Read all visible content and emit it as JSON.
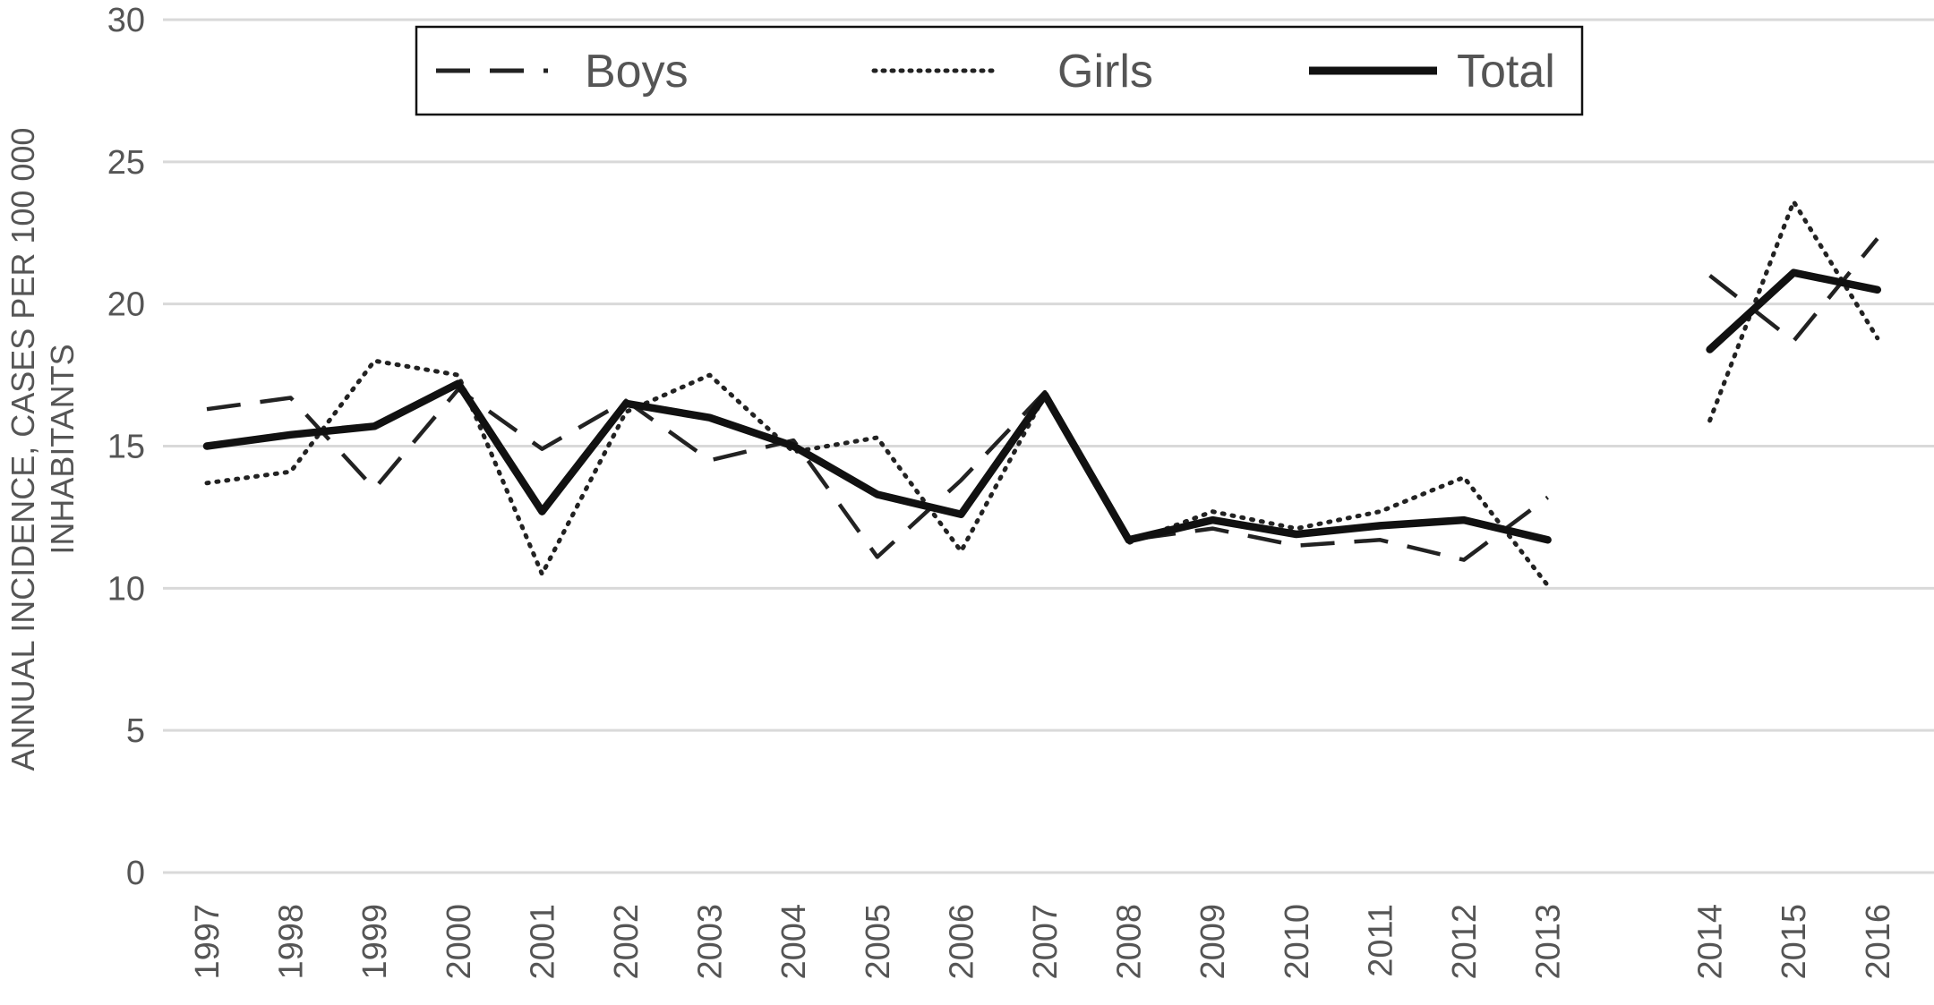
{
  "chart_data": {
    "type": "line",
    "ylabel_lines": [
      "ANNUAL INCIDENCE, CASES PER 100 000",
      "INHABITANTS"
    ],
    "xlabel": "",
    "ylim": [
      0,
      30
    ],
    "yticks": [
      "0",
      "5",
      "10",
      "15",
      "20",
      "25",
      "30"
    ],
    "ytick_values": [
      0,
      5,
      10,
      15,
      20,
      25,
      30
    ],
    "grid": true,
    "legend_position": "top-center",
    "categories": [
      "1997",
      "1998",
      "1999",
      "2000",
      "2001",
      "2002",
      "2003",
      "2004",
      "2005",
      "2006",
      "2007",
      "2008",
      "2009",
      "2010",
      "2011",
      "2012",
      "2013",
      "2014",
      "2015",
      "2016"
    ],
    "gap_after": "2013",
    "series": [
      {
        "name": "Boys",
        "style": "dashed",
        "color": "#222222",
        "values": [
          16.3,
          16.7,
          13.5,
          17.0,
          14.9,
          16.6,
          14.5,
          15.2,
          11.1,
          13.8,
          16.9,
          11.7,
          12.1,
          11.5,
          11.7,
          11.0,
          13.2,
          21.0,
          18.7,
          22.3
        ]
      },
      {
        "name": "Girls",
        "style": "dotted",
        "color": "#222222",
        "values": [
          13.7,
          14.1,
          18.0,
          17.5,
          10.5,
          16.2,
          17.5,
          14.8,
          15.3,
          11.3,
          16.8,
          11.6,
          12.7,
          12.1,
          12.7,
          13.9,
          10.1,
          15.9,
          23.6,
          18.8
        ]
      },
      {
        "name": "Total",
        "style": "solid",
        "color": "#111111",
        "values": [
          15.0,
          15.4,
          15.7,
          17.2,
          12.7,
          16.5,
          16.0,
          15.0,
          13.3,
          12.6,
          16.8,
          11.7,
          12.4,
          11.9,
          12.2,
          12.4,
          11.7,
          18.4,
          21.1,
          20.5
        ]
      }
    ]
  }
}
